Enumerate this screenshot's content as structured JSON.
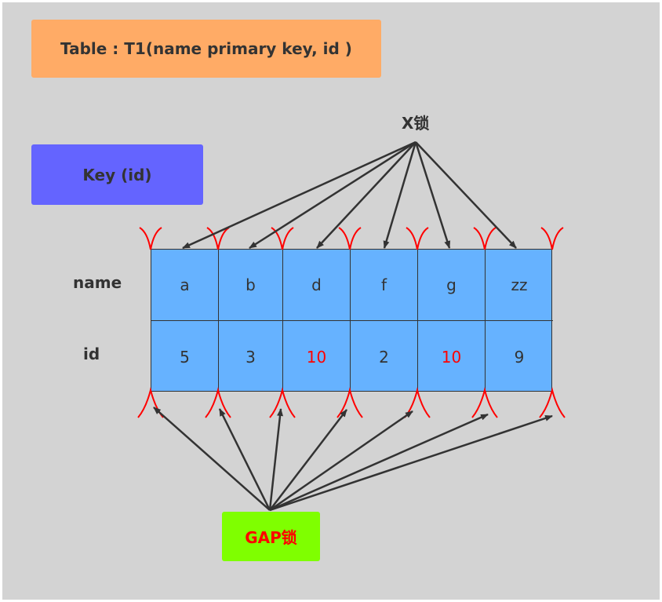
{
  "title": "Table : T1(name  primary  key, id )",
  "key_label": "Key  (id)",
  "x_lock_label": "X锁",
  "gap_lock_label": "GAP锁",
  "row_labels": {
    "name": "name",
    "id": "id"
  },
  "columns": [
    {
      "name": "a",
      "id": "5",
      "highlight": false
    },
    {
      "name": "b",
      "id": "3",
      "highlight": false
    },
    {
      "name": "d",
      "id": "10",
      "highlight": true
    },
    {
      "name": "f",
      "id": "2",
      "highlight": false
    },
    {
      "name": "g",
      "id": "10",
      "highlight": true
    },
    {
      "name": "zz",
      "id": "9",
      "highlight": false
    }
  ],
  "colors": {
    "canvas": "#d3d3d3",
    "title_box": "#ffab66",
    "key_box": "#6464ff",
    "gap_box": "#7fff00",
    "cell_fill": "#66b2ff",
    "highlight_text": "#ff0000",
    "gap_marker": "#ff0000",
    "arrow": "#333333"
  }
}
